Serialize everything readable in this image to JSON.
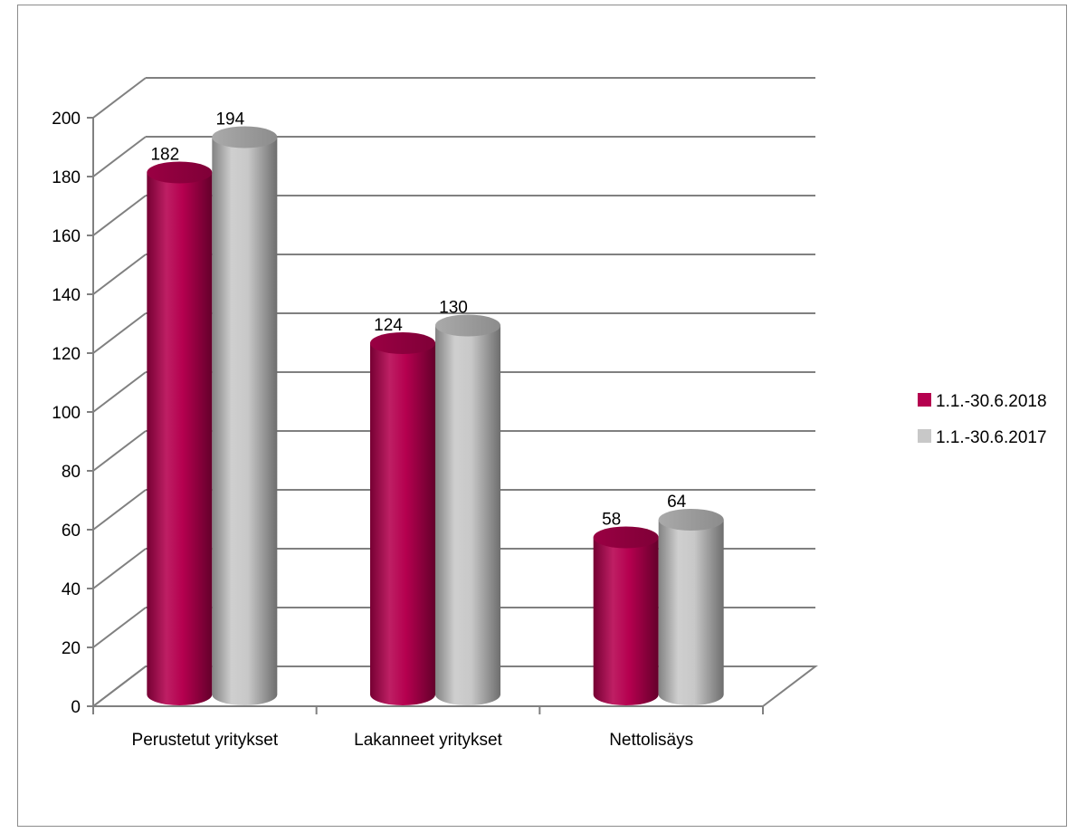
{
  "chart_data": {
    "type": "bar",
    "style": "3d-cylinder",
    "categories": [
      "Perustetut yritykset",
      "Lakanneet yritykset",
      "Nettolisäys"
    ],
    "series": [
      {
        "name": "1.1.-30.6.2018",
        "values": [
          182,
          124,
          58
        ],
        "color": "#b5004f"
      },
      {
        "name": "1.1.-30.6.2017",
        "values": [
          194,
          130,
          64
        ],
        "color": "#c8c8c8"
      }
    ],
    "ylim": [
      0,
      200
    ],
    "yticks": [
      0,
      20,
      40,
      60,
      80,
      100,
      120,
      140,
      160,
      180,
      200
    ],
    "grid": true,
    "legend_position": "right",
    "data_labels": true
  }
}
